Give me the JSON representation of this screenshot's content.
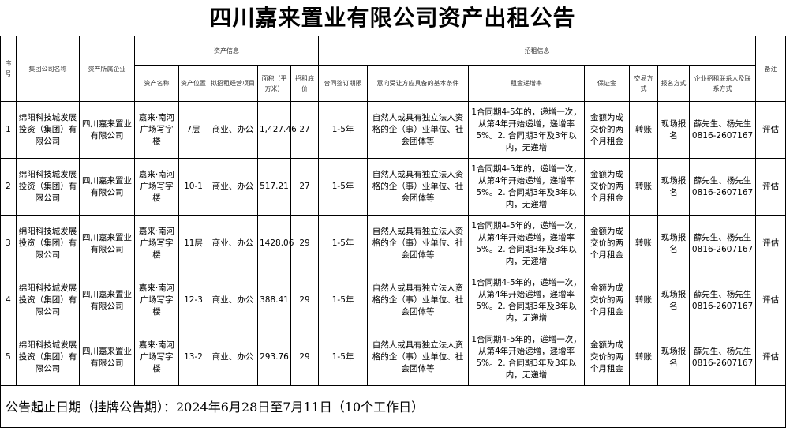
{
  "title": "四川嘉来置业有限公司资产出租公告",
  "headers": {
    "seq": "序号",
    "group": "集团公司名称",
    "owner": "资产所属企业",
    "asset_info": "资产信息",
    "lease_info": "招租信息",
    "remark": "备注",
    "asset_name": "资产名称",
    "location": "资产位置",
    "business": "拟招租经营项目",
    "area": "面积（平方米）",
    "base_price": "招租底价",
    "term": "合同签订期限",
    "conditions": "意向受让方应具备的基本条件",
    "increase": "租金递增率",
    "deposit": "保证金",
    "trade": "交易方式",
    "signup": "报名方式",
    "contact": "企业招租联系人及联系方式"
  },
  "rows": [
    {
      "seq": "1",
      "group": "绵阳科技城发展投资（集团）有限公司",
      "owner": "四川嘉来置业有限公司",
      "asset_name": "嘉来·南河广场写字楼",
      "location": "7层",
      "business": "商业、办公",
      "area": "1,427.46",
      "base_price": "27",
      "term": "1-5年",
      "conditions": "自然人或具有独立法人资格的企（事）业单位、社会团体等",
      "increase": "1合同期4-5年的，递增一次，从第4年开始递增，递增率5%。2. 合同期3年及3年以内，无递增",
      "deposit": "金额为成交价的两个月租金",
      "trade": "转账",
      "signup": "现场报名",
      "contact": "薛先生、杨先生 0816-2607167",
      "remark": "评估"
    },
    {
      "seq": "2",
      "group": "绵阳科技城发展投资（集团）有限公司",
      "owner": "四川嘉来置业有限公司",
      "asset_name": "嘉来·南河广场写字楼",
      "location": "10-1",
      "business": "商业、办公",
      "area": "517.21",
      "base_price": "27",
      "term": "1-5年",
      "conditions": "自然人或具有独立法人资格的企（事）业单位、社会团体等",
      "increase": "1合同期4-5年的，递增一次，从第4年开始递增，递增率5%。2. 合同期3年及3年以内，无递增",
      "deposit": "金额为成交价的两个月租金",
      "trade": "转账",
      "signup": "现场报名",
      "contact": "薛先生、杨先生 0816-2607167",
      "remark": "评估"
    },
    {
      "seq": "3",
      "group": "绵阳科技城发展投资（集团）有限公司",
      "owner": "四川嘉来置业有限公司",
      "asset_name": "嘉来·南河广场写字楼",
      "location": "11层",
      "business": "商业、办公",
      "area": "1428.06",
      "base_price": "29",
      "term": "1-5年",
      "conditions": "自然人或具有独立法人资格的企（事）业单位、社会团体等",
      "increase": "1合同期4-5年的，递增一次，从第4年开始递增，递增率5%。2. 合同期3年及3年以内，无递增",
      "deposit": "金额为成交价的两个月租金",
      "trade": "转账",
      "signup": "现场报名",
      "contact": "薛先生、杨先生 0816-2607167",
      "remark": "评估"
    },
    {
      "seq": "4",
      "group": "绵阳科技城发展投资（集团）有限公司",
      "owner": "四川嘉来置业有限公司",
      "asset_name": "嘉来·南河广场写字楼",
      "location": "12-3",
      "business": "商业、办公",
      "area": "388.41",
      "base_price": "29",
      "term": "1-5年",
      "conditions": "自然人或具有独立法人资格的企（事）业单位、社会团体等",
      "increase": "1合同期4-5年的，递增一次，从第4年开始递增，递增率5%。2. 合同期3年及3年以内，无递增",
      "deposit": "金额为成交价的两个月租金",
      "trade": "转账",
      "signup": "现场报名",
      "contact": "薛先生、杨先生 0816-2607167",
      "remark": "评估"
    },
    {
      "seq": "5",
      "group": "绵阳科技城发展投资（集团）有限公司",
      "owner": "四川嘉来置业有限公司",
      "asset_name": "嘉来·南河广场写字楼",
      "location": "13-2",
      "business": "商业、办公",
      "area": "293.76",
      "base_price": "29",
      "term": "1-5年",
      "conditions": "自然人或具有独立法人资格的企（事）业单位、社会团体等",
      "increase": "1合同期4-5年的，递增一次，从第4年开始递增，递增率5%。2. 合同期3年及3年以内，无递增",
      "deposit": "金额为成交价的两个月租金",
      "trade": "转账",
      "signup": "现场报名",
      "contact": "薛先生、杨先生 0816-2607167",
      "remark": "评估"
    }
  ],
  "footer": "公告起止日期（挂牌公告期）：2024年6月28日至7月11日（10个工作日）"
}
